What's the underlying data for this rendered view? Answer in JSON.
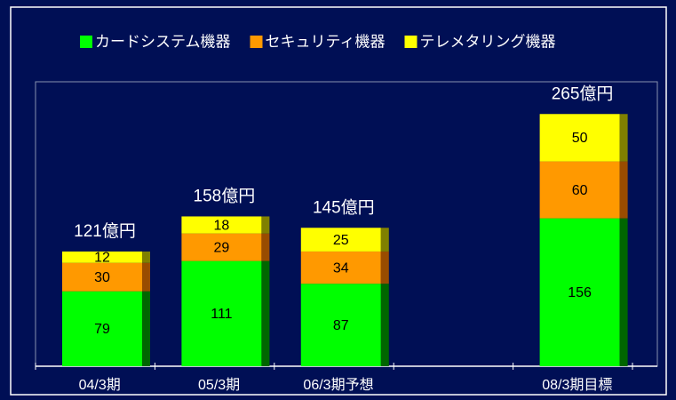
{
  "chart_data": {
    "type": "stacked_bar",
    "categories": [
      "04/3期",
      "05/3期",
      "06/3期予想",
      null,
      "08/3期目標"
    ],
    "series": [
      {
        "name": "カードシステム機器",
        "color": "#00ff00",
        "side": "#006600",
        "values": [
          79,
          111,
          87,
          null,
          156
        ]
      },
      {
        "name": "セキュリティ機器",
        "color": "#ff9900",
        "side": "#994c00",
        "values": [
          30,
          29,
          34,
          null,
          60
        ]
      },
      {
        "name": "テレメタリング機器",
        "color": "#ffff00",
        "side": "#808000",
        "values": [
          12,
          18,
          25,
          null,
          50
        ]
      }
    ],
    "totals": [
      121,
      158,
      145,
      null,
      265
    ],
    "total_labels": [
      "121億円",
      "158億円",
      "145億円",
      null,
      "265億円"
    ],
    "ylim": [
      0,
      300
    ],
    "legend": "top"
  }
}
